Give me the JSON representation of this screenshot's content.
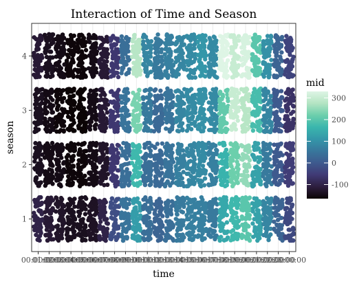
{
  "chart_data": {
    "type": "scatter",
    "title": "Interaction of Time and Season",
    "xlabel": "time",
    "ylabel": "season",
    "x_ticks": [
      "00:00:00",
      "01:00:00",
      "02:00:00",
      "03:00:00",
      "04:00:00",
      "05:00:00",
      "06:00:00",
      "07:00:00",
      "08:00:00",
      "09:00:00",
      "10:00:00",
      "11:00:00",
      "12:00:00",
      "13:00:00",
      "14:00:00",
      "15:00:00",
      "16:00:00",
      "17:00:00",
      "18:00:00",
      "19:00:00",
      "20:00:00",
      "21:00:00",
      "22:00:00",
      "23:00:00"
    ],
    "y_ticks": [
      "1",
      "2",
      "3",
      "4"
    ],
    "grid": true,
    "legend": {
      "title": "mid",
      "placement": "right",
      "range": [
        -165,
        330
      ],
      "ticks": [
        "300",
        "200",
        "100",
        "0",
        "-100"
      ],
      "tick_values": [
        300,
        200,
        100,
        0,
        -100
      ],
      "colormap": [
        "#0b0405",
        "#2d1e3e",
        "#403a75",
        "#3e5a8e",
        "#38779c",
        "#3497a9",
        "#3ab6ad",
        "#6ccfac",
        "#b4e4c3",
        "#def5e5"
      ]
    },
    "series": [
      {
        "name": "1",
        "mid_by_hour": [
          -100,
          -120,
          -130,
          -140,
          -140,
          -135,
          -100,
          -20,
          50,
          120,
          40,
          20,
          40,
          60,
          70,
          70,
          60,
          140,
          170,
          200,
          130,
          80,
          20,
          -30
        ]
      },
      {
        "name": "2",
        "mid_by_hour": [
          -140,
          -150,
          -150,
          -160,
          -160,
          -150,
          -130,
          -60,
          40,
          170,
          40,
          30,
          50,
          70,
          80,
          90,
          70,
          160,
          220,
          250,
          130,
          60,
          0,
          -50
        ]
      },
      {
        "name": "3",
        "mid_by_hour": [
          -140,
          -150,
          -160,
          -165,
          -165,
          -150,
          -120,
          -60,
          50,
          230,
          60,
          30,
          50,
          80,
          90,
          100,
          90,
          210,
          300,
          280,
          180,
          80,
          0,
          -70
        ]
      },
      {
        "name": "4",
        "mid_by_hour": [
          -120,
          -140,
          -150,
          -160,
          -160,
          -150,
          -120,
          -60,
          40,
          280,
          80,
          60,
          70,
          80,
          90,
          110,
          90,
          330,
          300,
          320,
          200,
          100,
          20,
          -40
        ]
      }
    ]
  }
}
